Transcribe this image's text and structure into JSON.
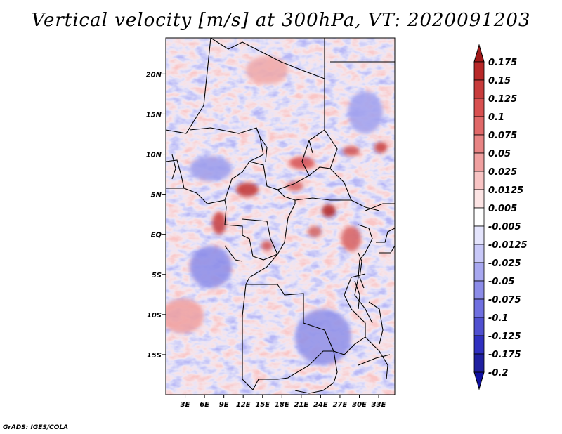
{
  "title": "Vertical velocity [m/s] at 300hPa, VT: 2020091203",
  "footer": "GrADS: IGES/COLA",
  "chart_data": {
    "type": "heatmap",
    "title": "Vertical velocity [m/s] at 300hPa, VT: 2020091203",
    "variable": "Vertical velocity",
    "units": "m/s",
    "level": "300hPa",
    "valid_time": "2020091203",
    "x_axis": {
      "range": [
        0,
        35.5
      ],
      "ticks": [
        3,
        6,
        9,
        12,
        15,
        18,
        21,
        24,
        27,
        30,
        33
      ],
      "tick_labels": [
        "3E",
        "6E",
        "9E",
        "12E",
        "15E",
        "18E",
        "21E",
        "24E",
        "27E",
        "30E",
        "33E"
      ]
    },
    "y_axis": {
      "range": [
        -20,
        24.5
      ],
      "ticks": [
        20,
        15,
        10,
        5,
        0,
        -5,
        -10,
        -15
      ],
      "tick_labels": [
        "20N",
        "15N",
        "10N",
        "5N",
        "EQ",
        "5S",
        "10S",
        "15S"
      ]
    },
    "colorbar": {
      "levels": [
        "0.175",
        "0.15",
        "0.125",
        "0.1",
        "0.075",
        "0.05",
        "0.025",
        "0.0125",
        "0.005",
        "-0.005",
        "-0.0125",
        "-0.025",
        "-0.05",
        "-0.075",
        "-0.1",
        "-0.125",
        "-0.175",
        "-0.2"
      ],
      "colors": [
        "#a01818",
        "#b82828",
        "#c83c3c",
        "#d85050",
        "#e06868",
        "#e88484",
        "#f0a0a0",
        "#f8c4c4",
        "#fce4e4",
        "#ffffff",
        "#e4e4fc",
        "#c8c8f8",
        "#a8a8f0",
        "#8c8ce8",
        "#7070e0",
        "#5050d0",
        "#3030c0",
        "#2020a0",
        "#1010a0"
      ]
    }
  }
}
